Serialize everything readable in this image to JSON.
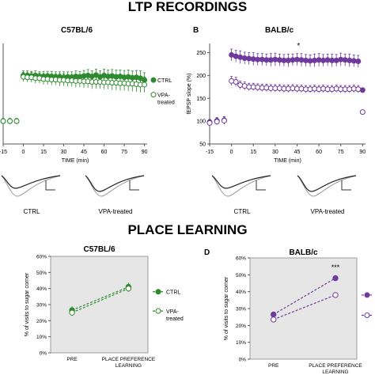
{
  "headings": {
    "ltp": "LTP RECORDINGS",
    "place": "PLACE LEARNING"
  },
  "colors": {
    "c57_series": "#2f8a2f",
    "balb_series": "#6f3a9c",
    "trace_dark": "#222222",
    "trace_light": "#999999",
    "plot_bg": "#e6e6e6"
  },
  "chart_data": [
    {
      "id": "A",
      "type": "scatter",
      "panel_label": "",
      "title": "C57BL/6",
      "xlabel": "TIME (min)",
      "ylabel": "",
      "x_ticks": [
        "-15",
        "0",
        "15",
        "30",
        "45",
        "60",
        "75",
        "90"
      ],
      "xlim": [
        -15,
        92
      ],
      "ylim": [
        50,
        270
      ],
      "y_ticks": [],
      "series": [
        {
          "name": "CTRL",
          "marker": "filled",
          "x": [
            -15,
            -10,
            -5,
            0,
            3,
            6,
            9,
            12,
            15,
            18,
            21,
            24,
            27,
            30,
            33,
            36,
            39,
            42,
            45,
            48,
            51,
            54,
            57,
            60,
            63,
            66,
            69,
            72,
            75,
            78,
            81,
            84,
            87,
            90
          ],
          "y": [
            100,
            100,
            100,
            200,
            200,
            199,
            200,
            198,
            198,
            199,
            198,
            197,
            197,
            196,
            197,
            196,
            198,
            197,
            199,
            200,
            198,
            201,
            197,
            200,
            198,
            199,
            197,
            198,
            196,
            197,
            195,
            196,
            194,
            190
          ],
          "err": [
            6,
            6,
            6,
            10,
            10,
            10,
            10,
            10,
            11,
            10,
            11,
            11,
            11,
            12,
            11,
            12,
            12,
            12,
            12,
            13,
            12,
            13,
            13,
            14,
            14,
            14,
            15,
            14,
            15,
            15,
            15,
            15,
            16,
            16
          ]
        },
        {
          "name": "VPA-treated",
          "marker": "open",
          "x": [
            -15,
            -10,
            -5,
            0,
            3,
            6,
            9,
            12,
            15,
            18,
            21,
            24,
            27,
            30,
            33,
            36,
            39,
            42,
            45,
            48,
            51,
            54,
            57,
            60,
            63,
            66,
            69,
            72,
            75,
            78,
            81,
            84,
            87,
            90
          ],
          "y": [
            100,
            100,
            100,
            197,
            196,
            196,
            194,
            194,
            192,
            192,
            191,
            191,
            190,
            190,
            189,
            189,
            188,
            188,
            187,
            187,
            186,
            186,
            186,
            185,
            185,
            184,
            184,
            183,
            183,
            182,
            182,
            181,
            180,
            180
          ],
          "err": [
            6,
            6,
            6,
            10,
            10,
            11,
            11,
            11,
            12,
            12,
            12,
            12,
            13,
            13,
            13,
            13,
            14,
            14,
            14,
            14,
            15,
            15,
            15,
            15,
            15,
            16,
            16,
            16,
            16,
            16,
            17,
            17,
            17,
            17
          ]
        }
      ],
      "legend": [
        "CTRL",
        "VPA-treated"
      ],
      "legend_placement": "right",
      "grid": false
    },
    {
      "id": "B",
      "type": "scatter",
      "panel_label": "B",
      "title": "BALB/c",
      "xlabel": "TIME (min)",
      "ylabel": "fEPSP slope (%)",
      "x_ticks": [
        "-15",
        "0",
        "15",
        "30",
        "45",
        "60",
        "75",
        "90"
      ],
      "xlim": [
        -15,
        92
      ],
      "ylim": [
        50,
        270
      ],
      "y_ticks": [
        "50",
        "100",
        "150",
        "200",
        "250"
      ],
      "annotation": "*",
      "series": [
        {
          "name": "",
          "marker": "filled",
          "x": [
            -15,
            -10,
            -5,
            0,
            3,
            6,
            9,
            12,
            15,
            18,
            21,
            24,
            27,
            30,
            33,
            36,
            39,
            42,
            45,
            48,
            51,
            54,
            57,
            60,
            63,
            66,
            69,
            72,
            75,
            78,
            81,
            84,
            87,
            90
          ],
          "y": [
            98,
            101,
            102,
            245,
            242,
            240,
            238,
            237,
            236,
            235,
            235,
            234,
            234,
            235,
            234,
            233,
            233,
            234,
            235,
            234,
            233,
            232,
            233,
            234,
            233,
            234,
            233,
            233,
            235,
            234,
            233,
            232,
            231,
            168
          ],
          "err": [
            6,
            7,
            8,
            13,
            13,
            14,
            13,
            13,
            14,
            13,
            13,
            13,
            14,
            14,
            13,
            13,
            14,
            13,
            13,
            14,
            13,
            13,
            14,
            14,
            13,
            13,
            14,
            13,
            14,
            13,
            14,
            13,
            13,
            5
          ]
        },
        {
          "name": "",
          "marker": "open",
          "x": [
            -15,
            -10,
            -5,
            0,
            3,
            6,
            9,
            12,
            15,
            18,
            21,
            24,
            27,
            30,
            33,
            36,
            39,
            42,
            45,
            48,
            51,
            54,
            57,
            60,
            63,
            66,
            69,
            72,
            75,
            78,
            81,
            84,
            87,
            90
          ],
          "y": [
            96,
            99,
            101,
            188,
            186,
            179,
            177,
            175,
            175,
            174,
            173,
            173,
            172,
            172,
            172,
            171,
            171,
            172,
            171,
            171,
            170,
            170,
            171,
            170,
            171,
            170,
            170,
            171,
            170,
            170,
            170,
            171,
            170,
            120
          ],
          "err": [
            7,
            7,
            8,
            10,
            10,
            9,
            9,
            8,
            8,
            8,
            8,
            8,
            8,
            8,
            8,
            8,
            8,
            8,
            8,
            8,
            8,
            8,
            8,
            8,
            8,
            8,
            8,
            8,
            8,
            8,
            8,
            8,
            8,
            4
          ]
        }
      ],
      "legend_placement": "none",
      "grid": false
    },
    {
      "id": "C",
      "type": "line",
      "panel_label": "",
      "title": "C57BL/6",
      "xlabel": "",
      "ylabel": "% of visits to sugar corner",
      "categories": [
        "PRE",
        "PLACE PREFERENCE LEARNING"
      ],
      "ylim": [
        0,
        60
      ],
      "y_ticks": [
        "0%",
        "10%",
        "20%",
        "30%",
        "40%",
        "50%",
        "60%"
      ],
      "series": [
        {
          "name": "CTRL",
          "marker": "filled",
          "values": [
            26.5,
            41.0
          ],
          "err": [
            2.5,
            2.5
          ]
        },
        {
          "name": "VPA-treated",
          "marker": "open",
          "values": [
            25.0,
            40.0
          ],
          "err": [
            2.0,
            2.0
          ]
        }
      ],
      "legend": [
        "CTRL",
        "VPA-treated"
      ],
      "legend_placement": "right",
      "grid": false
    },
    {
      "id": "D",
      "type": "line",
      "panel_label": "D",
      "title": "BALB/c",
      "xlabel": "",
      "ylabel": "% of visits to sugar corner",
      "categories": [
        "PRE",
        "PLACE PREFERENCE LEARNING"
      ],
      "ylim": [
        0,
        60
      ],
      "y_ticks": [
        "0%",
        "10%",
        "20%",
        "30%",
        "40%",
        "50%",
        "60%"
      ],
      "annotation": "***",
      "series": [
        {
          "name": "",
          "marker": "filled",
          "values": [
            26.5,
            48.0
          ],
          "err": [
            1.5,
            1.5
          ]
        },
        {
          "name": "",
          "marker": "open",
          "values": [
            23.5,
            38.0
          ],
          "err": [
            1.5,
            1.5
          ]
        }
      ],
      "legend_placement": "right",
      "grid": false
    }
  ],
  "traces": [
    {
      "label": "CTRL"
    },
    {
      "label": "VPA-treated"
    },
    {
      "label": "CTRL"
    },
    {
      "label": "VPA-treated"
    }
  ]
}
